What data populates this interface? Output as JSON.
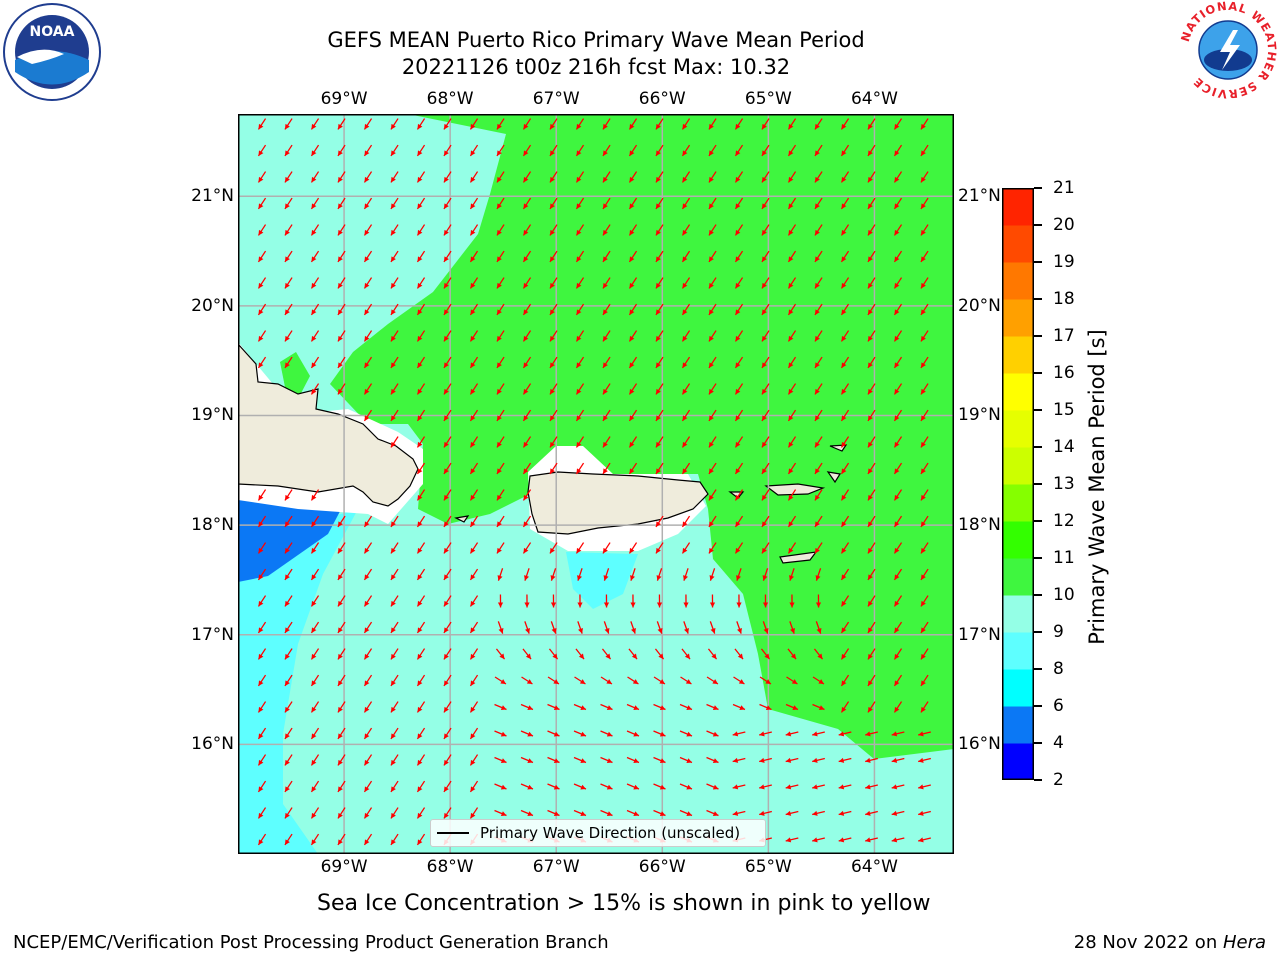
{
  "header": {
    "title_line1": "GEFS MEAN Puerto Rico Primary Wave Mean Period",
    "title_line2": "20221126 t00z 216h fcst   Max: 10.32"
  },
  "logos": {
    "left": "NOAA",
    "right_ring": "NATIONAL WEATHER SERVICE"
  },
  "map": {
    "lon_ticks": [
      "69°W",
      "68°W",
      "67°W",
      "66°W",
      "65°W",
      "64°W"
    ],
    "lat_ticks": [
      "21°N",
      "20°N",
      "19°N",
      "18°N",
      "17°N",
      "16°N"
    ],
    "lon_range": [
      -70.0,
      -63.25
    ],
    "lat_range": [
      15.0,
      21.75
    ],
    "arrow_color": "#ff0000",
    "arrow_direction": "toward south-west, turning south-east in the south-central area",
    "legend_label": "Primary Wave Direction (unscaled)"
  },
  "colorbar": {
    "label": "Primary Wave Mean Period [s]",
    "ticks": [
      "21",
      "20",
      "19",
      "18",
      "17",
      "16",
      "15",
      "14",
      "13",
      "12",
      "11",
      "10",
      "9",
      "8",
      "6",
      "4",
      "2"
    ],
    "colors": [
      "#0000ff",
      "#0b78f5",
      "#00ffff",
      "#5effff",
      "#94ffe6",
      "#3ff63f",
      "#33ff00",
      "#85ff00",
      "#ccff00",
      "#e6ff00",
      "#ffff00",
      "#ffd000",
      "#ffa000",
      "#ff7800",
      "#ff4a00",
      "#ff2400"
    ],
    "field_colors": {
      "land": "#efecdc",
      "period_4_6": "#0b78f5",
      "period_6_8": "#00ffff",
      "period_8_9": "#5effff",
      "period_9_10": "#94ffe6",
      "period_10_11": "#3ff63f"
    }
  },
  "notes": {
    "sea_ice": "Sea Ice Concentration > 15% is shown in pink to yellow",
    "footer_left": "NCEP/EMC/Verification Post Processing Product Generation Branch",
    "footer_right_prefix": "28 Nov 2022 on ",
    "footer_right_host": "Hera"
  }
}
